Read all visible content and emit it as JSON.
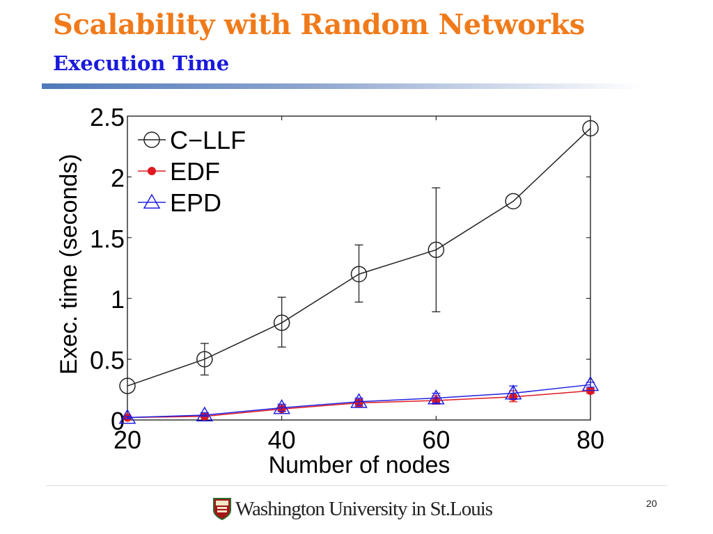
{
  "slide": {
    "title": "Scalability with Random Networks",
    "subtitle": "Execution Time",
    "page_number": "20",
    "logo_text": "Washington University in St.Louis"
  },
  "colors": {
    "title": "#f07a1a",
    "subtitle": "#1a1adb",
    "cllf": "#222222",
    "edf": "#e0181f",
    "epd": "#2020e0"
  },
  "chart_data": {
    "type": "line",
    "title": "",
    "xlabel": "Number of nodes",
    "ylabel": "Exec. time (seconds)",
    "x": [
      20,
      30,
      40,
      50,
      60,
      70,
      80
    ],
    "xlim": [
      20,
      80
    ],
    "ylim": [
      0,
      2.5
    ],
    "xticks": [
      "20",
      "40",
      "60",
      "80"
    ],
    "yticks": [
      "0",
      "0.5",
      "1",
      "1.5",
      "2",
      "2.5"
    ],
    "legend_position": "top-left",
    "grid": false,
    "series": [
      {
        "name": "C−LLF",
        "marker": "circle",
        "color": "#222222",
        "values": [
          0.28,
          0.5,
          0.8,
          1.2,
          1.4,
          1.8,
          2.4
        ],
        "err_low": [
          0.28,
          0.37,
          0.6,
          0.97,
          0.89,
          1.8,
          2.4
        ],
        "err_high": [
          0.28,
          0.63,
          1.01,
          1.44,
          1.91,
          1.8,
          2.4
        ]
      },
      {
        "name": "EDF",
        "marker": "dot",
        "color": "#e0181f",
        "values": [
          0.02,
          0.03,
          0.09,
          0.14,
          0.16,
          0.19,
          0.24
        ],
        "err_low": [
          0.01,
          0.02,
          0.07,
          0.11,
          0.13,
          0.15,
          0.22
        ],
        "err_high": [
          0.03,
          0.05,
          0.12,
          0.17,
          0.2,
          0.24,
          0.26
        ]
      },
      {
        "name": "EPD",
        "marker": "triangle",
        "color": "#2020e0",
        "values": [
          0.02,
          0.04,
          0.1,
          0.15,
          0.18,
          0.22,
          0.29
        ],
        "err_low": [
          0.01,
          0.03,
          0.07,
          0.12,
          0.14,
          0.17,
          0.27
        ],
        "err_high": [
          0.03,
          0.06,
          0.13,
          0.18,
          0.22,
          0.28,
          0.31
        ]
      }
    ]
  }
}
